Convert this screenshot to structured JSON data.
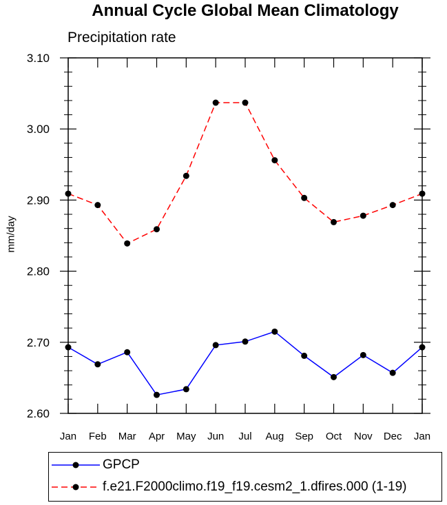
{
  "chart_data": {
    "type": "line",
    "title": "Annual Cycle Global Mean Climatology",
    "subtitle": "Precipitation rate",
    "xlabel": "",
    "ylabel": "mm/day",
    "categories": [
      "Jan",
      "Feb",
      "Mar",
      "Apr",
      "May",
      "Jun",
      "Jul",
      "Aug",
      "Sep",
      "Oct",
      "Nov",
      "Dec",
      "Jan"
    ],
    "ylim": [
      2.6,
      3.1
    ],
    "yticks": [
      2.6,
      2.7,
      2.8,
      2.9,
      3.0,
      3.1
    ],
    "ytick_labels": [
      "2.60",
      "2.70",
      "2.80",
      "2.90",
      "3.00",
      "3.10"
    ],
    "grid": false,
    "series": [
      {
        "name": "GPCP",
        "color": "#0000ff",
        "dash": "solid",
        "values": [
          2.693,
          2.669,
          2.686,
          2.626,
          2.634,
          2.696,
          2.701,
          2.715,
          2.681,
          2.651,
          2.682,
          2.657,
          2.693
        ]
      },
      {
        "name": "f.e21.F2000climo.f19_f19.cesm2_1.dfires.000 (1-19)",
        "color": "#ff0000",
        "dash": "dashed",
        "values": [
          2.909,
          2.893,
          2.839,
          2.859,
          2.934,
          3.037,
          3.037,
          2.956,
          2.903,
          2.869,
          2.878,
          2.893,
          2.909
        ]
      }
    ],
    "legend": "bottom"
  }
}
